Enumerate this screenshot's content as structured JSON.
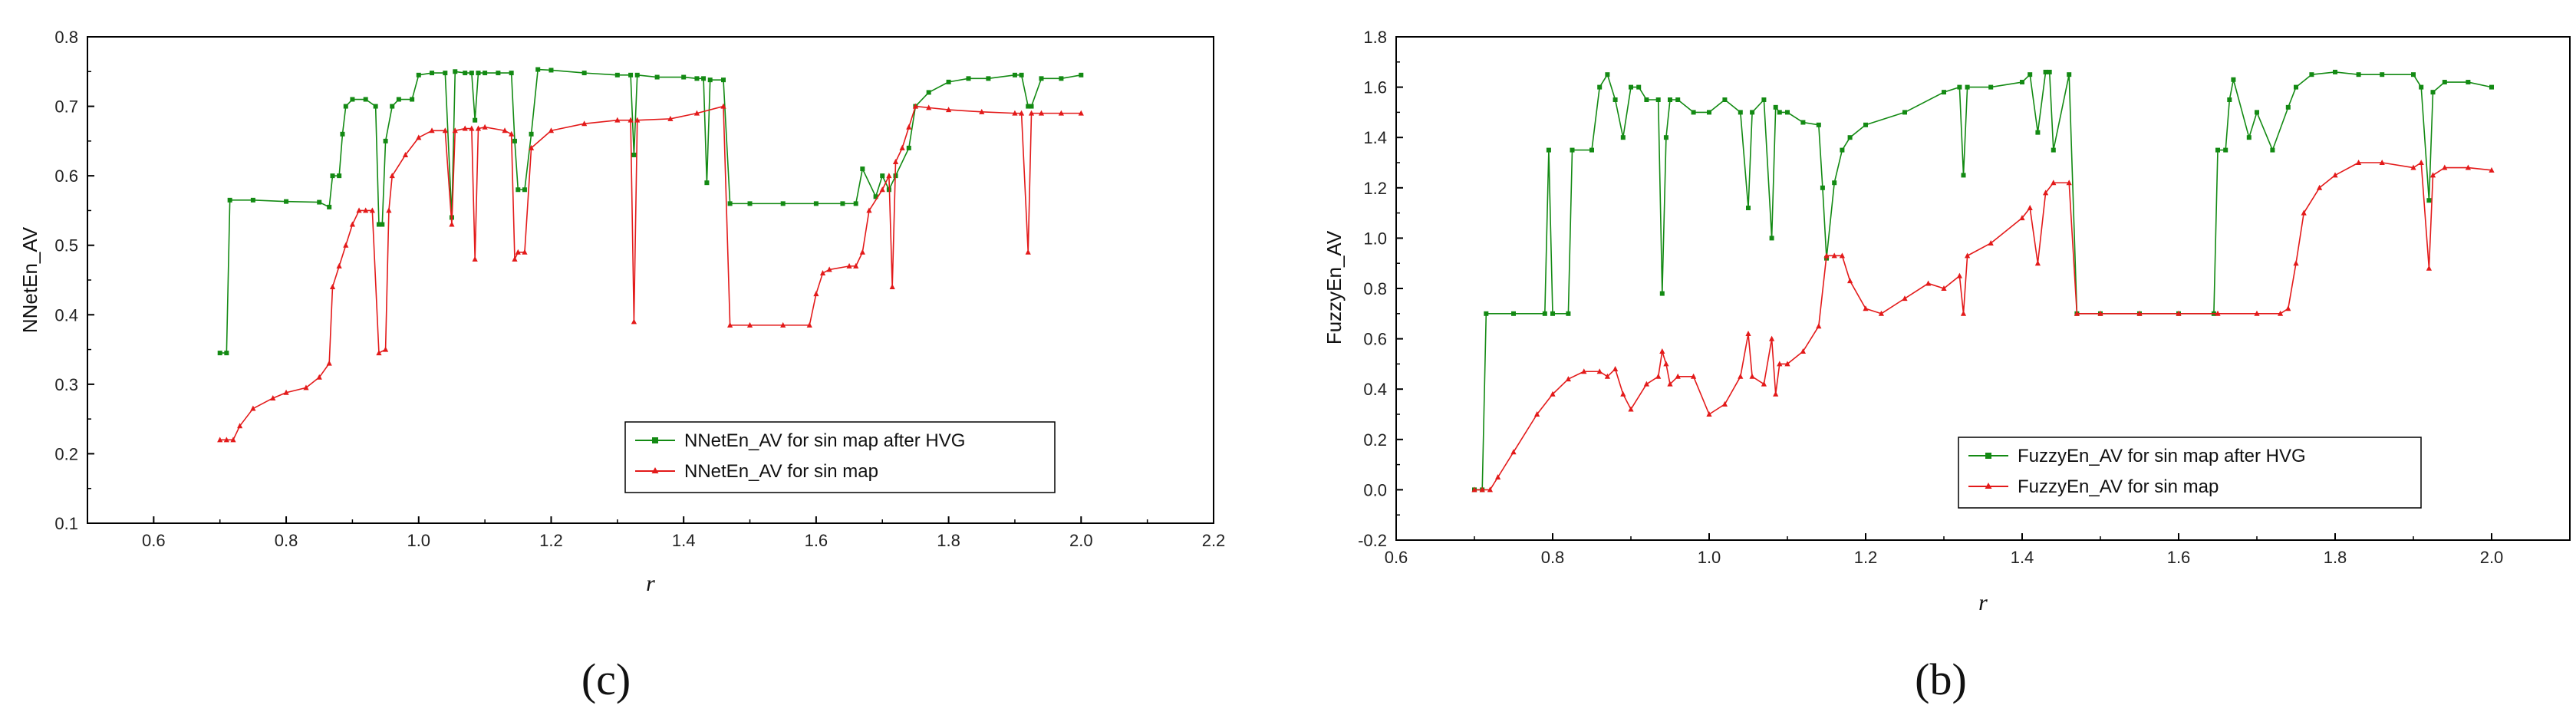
{
  "chart_data": [
    {
      "type": "line",
      "caption": "(c)",
      "xlabel": "r",
      "ylabel": "NNetEn_AV",
      "xlim": [
        0.5,
        2.2
      ],
      "ylim": [
        0.1,
        0.8
      ],
      "xticks": [
        "0.6",
        "0.8",
        "1.0",
        "1.2",
        "1.4",
        "1.6",
        "1.8",
        "2.0",
        "2.2"
      ],
      "yticks": [
        "0.1",
        "0.2",
        "0.3",
        "0.4",
        "0.5",
        "0.6",
        "0.7",
        "0.8"
      ],
      "legend_position": "lower-right",
      "series": [
        {
          "name": "NNetEn_AV for sin map after HVG",
          "color": "#138a13",
          "marker": "square",
          "x": [
            0.7,
            0.71,
            0.715,
            0.75,
            0.8,
            0.85,
            0.865,
            0.87,
            0.88,
            0.885,
            0.89,
            0.9,
            0.92,
            0.935,
            0.94,
            0.945,
            0.95,
            0.96,
            0.97,
            0.99,
            1.0,
            1.02,
            1.04,
            1.05,
            1.055,
            1.07,
            1.08,
            1.085,
            1.09,
            1.1,
            1.12,
            1.14,
            1.145,
            1.15,
            1.16,
            1.17,
            1.18,
            1.2,
            1.25,
            1.3,
            1.32,
            1.325,
            1.33,
            1.36,
            1.4,
            1.42,
            1.43,
            1.435,
            1.44,
            1.46,
            1.47,
            1.5,
            1.55,
            1.6,
            1.64,
            1.66,
            1.67,
            1.69,
            1.7,
            1.71,
            1.72,
            1.74,
            1.75,
            1.77,
            1.8,
            1.83,
            1.86,
            1.9,
            1.91,
            1.92,
            1.925,
            1.94,
            1.97,
            2.0
          ],
          "y": [
            0.345,
            0.345,
            0.565,
            0.565,
            0.563,
            0.562,
            0.555,
            0.6,
            0.6,
            0.66,
            0.7,
            0.71,
            0.71,
            0.7,
            0.53,
            0.53,
            0.65,
            0.7,
            0.71,
            0.71,
            0.745,
            0.748,
            0.748,
            0.54,
            0.75,
            0.748,
            0.748,
            0.68,
            0.748,
            0.748,
            0.748,
            0.748,
            0.65,
            0.58,
            0.58,
            0.66,
            0.753,
            0.752,
            0.748,
            0.745,
            0.745,
            0.63,
            0.745,
            0.742,
            0.742,
            0.74,
            0.74,
            0.59,
            0.738,
            0.738,
            0.56,
            0.56,
            0.56,
            0.56,
            0.56,
            0.56,
            0.61,
            0.57,
            0.6,
            0.58,
            0.6,
            0.64,
            0.7,
            0.72,
            0.735,
            0.74,
            0.74,
            0.745,
            0.745,
            0.7,
            0.7,
            0.74,
            0.74,
            0.745
          ]
        },
        {
          "name": "NNetEn_AV for sin map",
          "color": "#e31a1a",
          "marker": "triangle",
          "x": [
            0.7,
            0.71,
            0.72,
            0.73,
            0.75,
            0.78,
            0.8,
            0.83,
            0.85,
            0.865,
            0.87,
            0.88,
            0.89,
            0.9,
            0.91,
            0.92,
            0.93,
            0.94,
            0.95,
            0.955,
            0.96,
            0.98,
            1.0,
            1.02,
            1.04,
            1.05,
            1.055,
            1.07,
            1.08,
            1.085,
            1.09,
            1.1,
            1.13,
            1.14,
            1.145,
            1.15,
            1.16,
            1.17,
            1.2,
            1.25,
            1.3,
            1.32,
            1.325,
            1.33,
            1.38,
            1.42,
            1.46,
            1.47,
            1.5,
            1.55,
            1.59,
            1.6,
            1.61,
            1.62,
            1.65,
            1.66,
            1.67,
            1.68,
            1.7,
            1.71,
            1.715,
            1.72,
            1.73,
            1.74,
            1.75,
            1.77,
            1.8,
            1.85,
            1.9,
            1.91,
            1.92,
            1.925,
            1.94,
            1.97,
            2.0
          ],
          "y": [
            0.22,
            0.22,
            0.22,
            0.24,
            0.265,
            0.28,
            0.288,
            0.295,
            0.31,
            0.33,
            0.44,
            0.47,
            0.5,
            0.53,
            0.55,
            0.55,
            0.55,
            0.345,
            0.35,
            0.55,
            0.6,
            0.63,
            0.655,
            0.665,
            0.665,
            0.53,
            0.665,
            0.668,
            0.668,
            0.48,
            0.668,
            0.67,
            0.665,
            0.66,
            0.48,
            0.49,
            0.49,
            0.64,
            0.665,
            0.675,
            0.68,
            0.68,
            0.39,
            0.68,
            0.682,
            0.69,
            0.7,
            0.385,
            0.385,
            0.385,
            0.385,
            0.43,
            0.46,
            0.465,
            0.47,
            0.47,
            0.49,
            0.55,
            0.58,
            0.6,
            0.44,
            0.62,
            0.64,
            0.67,
            0.7,
            0.698,
            0.695,
            0.692,
            0.69,
            0.69,
            0.49,
            0.69,
            0.69,
            0.69,
            0.69
          ]
        }
      ]
    },
    {
      "type": "line",
      "caption": "(b)",
      "xlabel": "r",
      "ylabel": "FuzzyEn_AV",
      "xlim": [
        0.6,
        2.1
      ],
      "ylim": [
        -0.2,
        1.8
      ],
      "xticks": [
        "0.6",
        "0.8",
        "1.0",
        "1.2",
        "1.4",
        "1.6",
        "1.8",
        "2.0"
      ],
      "yticks": [
        "-0.2",
        "0.0",
        "0.2",
        "0.4",
        "0.6",
        "0.8",
        "1.0",
        "1.2",
        "1.4",
        "1.6",
        "1.8"
      ],
      "legend_position": "lower-right",
      "series": [
        {
          "name": "FuzzyEn_AV for sin map after HVG",
          "color": "#138a13",
          "marker": "square",
          "x": [
            0.7,
            0.71,
            0.715,
            0.75,
            0.79,
            0.795,
            0.8,
            0.82,
            0.825,
            0.85,
            0.86,
            0.87,
            0.88,
            0.89,
            0.9,
            0.91,
            0.92,
            0.935,
            0.94,
            0.945,
            0.95,
            0.96,
            0.98,
            1.0,
            1.02,
            1.04,
            1.05,
            1.055,
            1.07,
            1.08,
            1.085,
            1.09,
            1.1,
            1.12,
            1.14,
            1.145,
            1.15,
            1.16,
            1.17,
            1.18,
            1.2,
            1.25,
            1.3,
            1.32,
            1.325,
            1.33,
            1.36,
            1.4,
            1.41,
            1.42,
            1.43,
            1.435,
            1.44,
            1.46,
            1.47,
            1.5,
            1.55,
            1.6,
            1.645,
            1.65,
            1.66,
            1.665,
            1.67,
            1.69,
            1.7,
            1.72,
            1.74,
            1.75,
            1.77,
            1.8,
            1.83,
            1.86,
            1.9,
            1.91,
            1.92,
            1.925,
            1.94,
            1.97,
            2.0
          ],
          "y": [
            0.0,
            0.0,
            0.7,
            0.7,
            0.7,
            1.35,
            0.7,
            0.7,
            1.35,
            1.35,
            1.6,
            1.65,
            1.55,
            1.4,
            1.6,
            1.6,
            1.55,
            1.55,
            0.78,
            1.4,
            1.55,
            1.55,
            1.5,
            1.5,
            1.55,
            1.5,
            1.12,
            1.5,
            1.55,
            1.0,
            1.52,
            1.5,
            1.5,
            1.46,
            1.45,
            1.2,
            0.92,
            1.22,
            1.35,
            1.4,
            1.45,
            1.5,
            1.58,
            1.6,
            1.25,
            1.6,
            1.6,
            1.62,
            1.65,
            1.42,
            1.66,
            1.66,
            1.35,
            1.65,
            0.7,
            0.7,
            0.7,
            0.7,
            0.7,
            1.35,
            1.35,
            1.55,
            1.63,
            1.4,
            1.5,
            1.35,
            1.52,
            1.6,
            1.65,
            1.66,
            1.65,
            1.65,
            1.65,
            1.6,
            1.15,
            1.58,
            1.62,
            1.62,
            1.6
          ]
        },
        {
          "name": "FuzzyEn_AV for sin map",
          "color": "#e31a1a",
          "marker": "triangle",
          "x": [
            0.7,
            0.71,
            0.72,
            0.73,
            0.75,
            0.78,
            0.8,
            0.82,
            0.84,
            0.86,
            0.87,
            0.88,
            0.89,
            0.9,
            0.92,
            0.935,
            0.94,
            0.945,
            0.95,
            0.96,
            0.98,
            1.0,
            1.02,
            1.04,
            1.05,
            1.055,
            1.07,
            1.08,
            1.085,
            1.09,
            1.1,
            1.12,
            1.14,
            1.15,
            1.16,
            1.17,
            1.18,
            1.2,
            1.22,
            1.25,
            1.28,
            1.3,
            1.32,
            1.325,
            1.33,
            1.36,
            1.4,
            1.41,
            1.42,
            1.43,
            1.44,
            1.46,
            1.47,
            1.5,
            1.55,
            1.6,
            1.65,
            1.7,
            1.73,
            1.74,
            1.75,
            1.76,
            1.78,
            1.8,
            1.83,
            1.86,
            1.9,
            1.91,
            1.92,
            1.925,
            1.94,
            1.97,
            2.0
          ],
          "y": [
            0.0,
            0.0,
            0.0,
            0.05,
            0.15,
            0.3,
            0.38,
            0.44,
            0.47,
            0.47,
            0.45,
            0.48,
            0.38,
            0.32,
            0.42,
            0.45,
            0.55,
            0.5,
            0.42,
            0.45,
            0.45,
            0.3,
            0.34,
            0.45,
            0.62,
            0.45,
            0.42,
            0.6,
            0.38,
            0.5,
            0.5,
            0.55,
            0.65,
            0.93,
            0.93,
            0.93,
            0.83,
            0.72,
            0.7,
            0.76,
            0.82,
            0.8,
            0.85,
            0.7,
            0.93,
            0.98,
            1.08,
            1.12,
            0.9,
            1.18,
            1.22,
            1.22,
            0.7,
            0.7,
            0.7,
            0.7,
            0.7,
            0.7,
            0.7,
            0.72,
            0.9,
            1.1,
            1.2,
            1.25,
            1.3,
            1.3,
            1.28,
            1.3,
            0.88,
            1.25,
            1.28,
            1.28,
            1.27
          ]
        }
      ]
    }
  ]
}
